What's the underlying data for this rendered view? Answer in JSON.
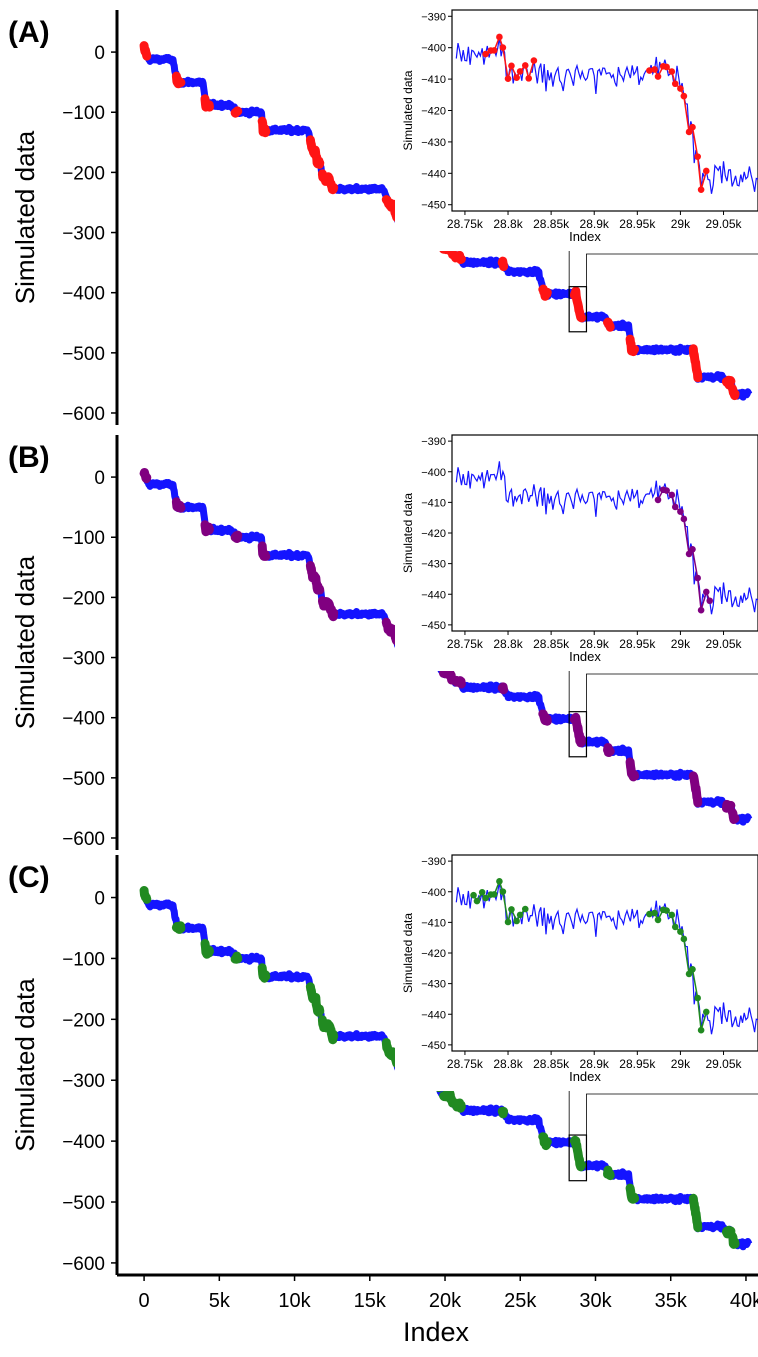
{
  "figure": {
    "xlabel": "Index",
    "x_ticks": [
      "0",
      "5k",
      "10k",
      "15k",
      "20k",
      "25k",
      "30k",
      "35k",
      "40k"
    ],
    "x_tick_values": [
      0,
      5000,
      10000,
      15000,
      20000,
      25000,
      30000,
      35000,
      40000
    ]
  },
  "colors": {
    "signal": "#1414ff",
    "panel_a": "#ff1414",
    "panel_b": "#800080",
    "panel_c": "#218a21",
    "axis": "#000000"
  },
  "chart_data": [
    {
      "type": "line",
      "panel_label": "(A)",
      "ylabel": "Simulated data",
      "y_ticks": [
        "0",
        "−100",
        "−200",
        "−300",
        "−400",
        "−500",
        "−600"
      ],
      "ylim": [
        -610,
        60
      ],
      "xlim": [
        -1800,
        40800
      ],
      "series": [
        {
          "values_description_note": "",
          "x": [
            0,
            100,
            200,
            300,
            500,
            900,
            1500,
            1900,
            2300,
            2600,
            3000,
            3500,
            3900,
            4200,
            4500,
            5100,
            5800,
            6100,
            6500,
            7200,
            7700,
            8000,
            8500,
            9500,
            10800,
            11100,
            11400,
            11600,
            11900,
            12200,
            12500,
            13000,
            14000,
            15000,
            15900,
            16300,
            16600,
            17100,
            18000,
            18900,
            19400,
            19900,
            20300,
            20700,
            21200,
            21600,
            22000,
            23000,
            24000,
            25100,
            26200,
            26600,
            27000,
            28000,
            28500,
            28900,
            29000,
            29100,
            29500,
            30100,
            30600,
            31000,
            31500,
            32200,
            32600,
            33000,
            34000,
            35000,
            36000,
            36600,
            37000,
            37400,
            38000,
            38500,
            38800,
            39200,
            39500
          ],
          "y": [
            10,
            5,
            -5,
            -10,
            -12,
            -8,
            -10,
            -12,
            -45,
            -50,
            -48,
            -50,
            -52,
            -80,
            -88,
            -85,
            -88,
            -90,
            -100,
            -98,
            -102,
            -130,
            -132,
            -130,
            -132,
            -140,
            -160,
            -170,
            -195,
            -210,
            -225,
            -225,
            -228,
            -226,
            -230,
            -250,
            -280,
            -285,
            -285,
            -285,
            -300,
            -320,
            -330,
            -335,
            -348,
            -350,
            -352,
            -350,
            -350,
            -355,
            -365,
            -365,
            -400,
            -403,
            -404,
            -410,
            -440,
            -440,
            -440,
            -445,
            -450,
            -460,
            -465,
            -490,
            -492,
            -495,
            -495,
            -495,
            -495,
            -535,
            -540,
            -545,
            -545,
            -550,
            -560,
            -568,
            -568
          ]
        },
        {
          "x": [
            0,
            100,
            2200,
            2400,
            4100,
            4300,
            6100,
            7900,
            11100,
            11300,
            11500,
            12000,
            12400,
            16100,
            16400,
            16700,
            19300,
            20100,
            20700,
            21000,
            23800,
            26500,
            28600,
            29100,
            30800,
            32300,
            36600,
            38800,
            39000
          ],
          "y": [
            15,
            0,
            -30,
            -55,
            -65,
            -95,
            -95,
            -125,
            -130,
            -160,
            -175,
            -200,
            -220,
            -210,
            -260,
            -290,
            -310,
            -325,
            -340,
            -350,
            -345,
            -405,
            -400,
            -440,
            -440,
            -470,
            -510,
            -540,
            -575
          ]
        }
      ],
      "inset": {
        "xlabel": "Index",
        "ylabel": "Simulated data",
        "x_ticks": [
          "28.75k",
          "28.8k",
          "28.85k",
          "28.9k",
          "28.95k",
          "29k",
          "29.05k"
        ],
        "x_tick_values": [
          28750,
          28800,
          28850,
          28900,
          28950,
          29000,
          29050
        ],
        "y_ticks": [
          "−390",
          "−400",
          "−410",
          "−420",
          "−430",
          "−440",
          "−450"
        ],
        "y_tick_values": [
          -390,
          -400,
          -410,
          -420,
          -430,
          -440,
          -450
        ],
        "xlim": [
          28735,
          29090
        ],
        "ylim": [
          -452,
          -388
        ],
        "marked_x": [
          28775,
          28780,
          28785,
          28790,
          28795,
          28800,
          28805,
          28810,
          28815,
          28820,
          28825,
          28830,
          28965,
          28970,
          28975,
          28980,
          28985,
          28990,
          28995,
          29000,
          29005,
          29010,
          29015,
          29020,
          29025,
          29030
        ]
      }
    },
    {
      "type": "line",
      "panel_label": "(B)",
      "ylabel": "Simulated data",
      "y_ticks": [
        "0",
        "−100",
        "−200",
        "−300",
        "−400",
        "−500",
        "−600"
      ],
      "ylim": [
        -610,
        60
      ],
      "xlim": [
        -1800,
        40800
      ],
      "inset": {
        "xlabel": "Index",
        "ylabel": "Simulated data",
        "x_ticks": [
          "28.75k",
          "28.8k",
          "28.85k",
          "28.9k",
          "28.95k",
          "29k",
          "29.05k"
        ],
        "x_tick_values": [
          28750,
          28800,
          28850,
          28900,
          28950,
          29000,
          29050
        ],
        "y_ticks": [
          "−390",
          "−400",
          "−410",
          "−420",
          "−430",
          "−440",
          "−450"
        ],
        "y_tick_values": [
          -390,
          -400,
          -410,
          -420,
          -430,
          -440,
          -450
        ],
        "xlim": [
          28735,
          29090
        ],
        "ylim": [
          -452,
          -388
        ],
        "marked_x": [
          28975,
          28980,
          28985,
          28990,
          28995,
          29000,
          29005,
          29010,
          29015,
          29020,
          29025,
          29030,
          29035
        ]
      }
    },
    {
      "type": "line",
      "panel_label": "(C)",
      "ylabel": "Simulated data",
      "y_ticks": [
        "0",
        "−100",
        "−200",
        "−300",
        "−400",
        "−500",
        "−600"
      ],
      "ylim": [
        -610,
        60
      ],
      "xlim": [
        -1800,
        40800
      ],
      "inset": {
        "xlabel": "Index",
        "ylabel": "Simulated data",
        "x_ticks": [
          "28.75k",
          "28.8k",
          "28.85k",
          "28.9k",
          "28.95k",
          "29k",
          "29.05k"
        ],
        "x_tick_values": [
          28750,
          28800,
          28850,
          28900,
          28950,
          29000,
          29050
        ],
        "y_ticks": [
          "−390",
          "−400",
          "−410",
          "−420",
          "−430",
          "−440",
          "−450"
        ],
        "y_tick_values": [
          -390,
          -400,
          -410,
          -420,
          -430,
          -440,
          -450
        ],
        "xlim": [
          28735,
          29090
        ],
        "ylim": [
          -452,
          -388
        ],
        "marked_x": [
          28760,
          28765,
          28770,
          28775,
          28780,
          28785,
          28790,
          28795,
          28800,
          28805,
          28810,
          28815,
          28820,
          28965,
          28970,
          28975,
          28980,
          28985,
          28990,
          28995,
          29000,
          29005,
          29010,
          29015,
          29020,
          29025,
          29030
        ]
      }
    }
  ]
}
